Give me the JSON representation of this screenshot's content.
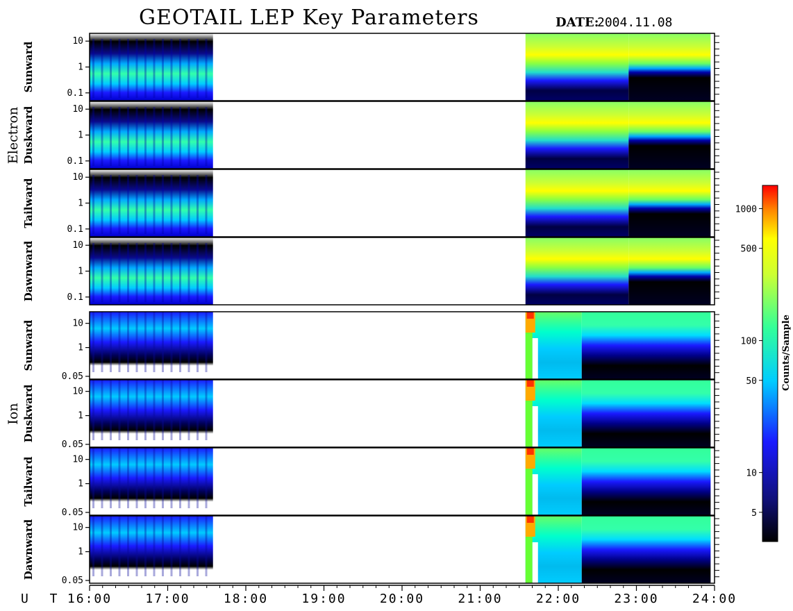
{
  "header": {
    "title": "GEOTAIL LEP Key Parameters",
    "date_label": "DATE:",
    "date_value": "2004.11.08"
  },
  "groups": [
    {
      "name": "Electron"
    },
    {
      "name": "Ion"
    }
  ],
  "colorbar": {
    "label": "Counts/Sample",
    "ticks": [
      "1000",
      "500",
      "100",
      "50",
      "10",
      "5"
    ],
    "tick_values": [
      1000,
      500,
      100,
      50,
      10,
      5
    ],
    "range": [
      3,
      1500
    ],
    "scale": "log",
    "colormap": [
      "#000000",
      "#1a1aff",
      "#00ccff",
      "#33ff99",
      "#ffff00",
      "#ff0000"
    ]
  },
  "chart_data": {
    "type": "heatmap",
    "title": "GEOTAIL LEP Key Parameters",
    "date": "2004.11.08",
    "x_axis": {
      "label": "U T",
      "ticks": [
        "16:00",
        "17:00",
        "18:00",
        "19:00",
        "20:00",
        "21:00",
        "22:00",
        "23:00",
        "24:00"
      ],
      "range_hours": [
        16,
        24
      ]
    },
    "data_coverage_hours": [
      [
        16.0,
        17.58
      ],
      [
        21.58,
        23.95
      ]
    ],
    "panels": [
      {
        "group": "Electron",
        "name": "Sunward",
        "y_ticks": [
          "10",
          "1",
          "0.1"
        ],
        "y_log_range": [
          0.05,
          20
        ]
      },
      {
        "group": "Electron",
        "name": "Duskward",
        "y_ticks": [
          "10",
          "1",
          "0.1"
        ],
        "y_log_range": [
          0.05,
          20
        ]
      },
      {
        "group": "Electron",
        "name": "Tailward",
        "y_ticks": [
          "10",
          "1",
          "0.1"
        ],
        "y_log_range": [
          0.05,
          20
        ]
      },
      {
        "group": "Electron",
        "name": "Dawnward",
        "y_ticks": [
          "10",
          "1",
          "0.1"
        ],
        "y_log_range": [
          0.05,
          20
        ]
      },
      {
        "group": "Ion",
        "name": "Sunward",
        "y_ticks": [
          "10",
          "1",
          "0.05"
        ],
        "y_log_range": [
          0.05,
          30
        ]
      },
      {
        "group": "Ion",
        "name": "Duskward",
        "y_ticks": [
          "10",
          "1",
          "0.05"
        ],
        "y_log_range": [
          0.05,
          30
        ]
      },
      {
        "group": "Ion",
        "name": "Tailward",
        "y_ticks": [
          "10",
          "1",
          "0.05"
        ],
        "y_log_range": [
          0.05,
          30
        ]
      },
      {
        "group": "Ion",
        "name": "Dawnward",
        "y_ticks": [
          "10",
          "1",
          "0.05"
        ],
        "y_log_range": [
          0.05,
          30
        ]
      }
    ]
  }
}
